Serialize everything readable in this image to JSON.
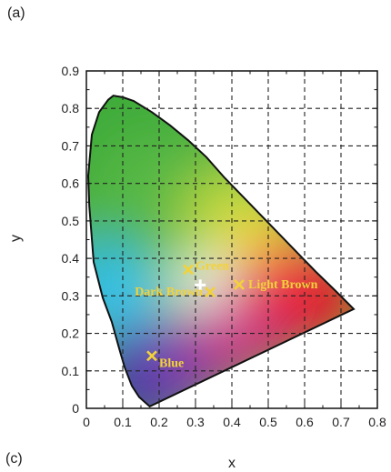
{
  "panel_labels": {
    "top": "(a)",
    "bottom": "(c)"
  },
  "colors": {
    "marker": "#f2d23a",
    "white_point": "#ffffff",
    "grid": "#222222"
  },
  "chart_data": {
    "type": "scatter",
    "xlabel": "x",
    "ylabel": "y",
    "xlim": [
      0,
      0.8
    ],
    "ylim": [
      0,
      0.9
    ],
    "grid": true,
    "x_ticks": [
      "0",
      "0.1",
      "0.2",
      "0.3",
      "0.4",
      "0.5",
      "0.6",
      "0.7",
      "0.8"
    ],
    "y_ticks": [
      "0",
      "0.1",
      "0.2",
      "0.3",
      "0.4",
      "0.5",
      "0.6",
      "0.7",
      "0.8",
      "0.9"
    ],
    "points": [
      {
        "label": "Green",
        "x": 0.28,
        "y": 0.37,
        "marker": "x"
      },
      {
        "label": "Dark Brown",
        "x": 0.34,
        "y": 0.31,
        "marker": "x"
      },
      {
        "label": "Light Brown",
        "x": 0.42,
        "y": 0.33,
        "marker": "x"
      },
      {
        "label": "Blue",
        "x": 0.18,
        "y": 0.14,
        "marker": "x"
      }
    ],
    "white_point": {
      "x": 0.313,
      "y": 0.329,
      "marker": "+"
    },
    "spectral_locus": [
      [
        0.174,
        0.005
      ],
      [
        0.145,
        0.03
      ],
      [
        0.125,
        0.06
      ],
      [
        0.105,
        0.11
      ],
      [
        0.09,
        0.16
      ],
      [
        0.07,
        0.23
      ],
      [
        0.045,
        0.295
      ],
      [
        0.02,
        0.39
      ],
      [
        0.008,
        0.54
      ],
      [
        0.005,
        0.62
      ],
      [
        0.015,
        0.73
      ],
      [
        0.035,
        0.79
      ],
      [
        0.06,
        0.823
      ],
      [
        0.074,
        0.834
      ],
      [
        0.1,
        0.83
      ],
      [
        0.13,
        0.82
      ],
      [
        0.18,
        0.79
      ],
      [
        0.23,
        0.755
      ],
      [
        0.28,
        0.715
      ],
      [
        0.33,
        0.67
      ],
      [
        0.38,
        0.615
      ],
      [
        0.43,
        0.565
      ],
      [
        0.48,
        0.515
      ],
      [
        0.53,
        0.465
      ],
      [
        0.58,
        0.415
      ],
      [
        0.63,
        0.365
      ],
      [
        0.68,
        0.318
      ],
      [
        0.735,
        0.265
      ]
    ]
  }
}
